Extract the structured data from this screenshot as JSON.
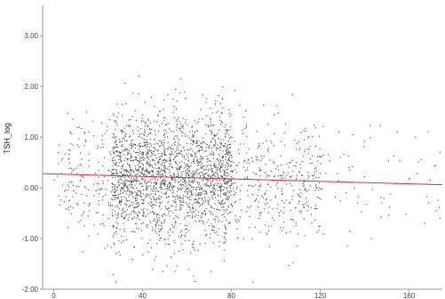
{
  "chart_data": {
    "type": "scatter",
    "title": "",
    "xlabel": "",
    "ylabel": "TSH_log",
    "xlim": [
      -5,
      175
    ],
    "ylim": [
      -2.0,
      3.6
    ],
    "x_ticks": [
      {
        "value": 0,
        "label": "0"
      },
      {
        "value": 40,
        "label": "40"
      },
      {
        "value": 80,
        "label": "80"
      },
      {
        "value": 120,
        "label": "120"
      },
      {
        "value": 160,
        "label": "160"
      }
    ],
    "y_ticks": [
      {
        "value": -2.0,
        "label": "-2.00"
      },
      {
        "value": -1.0,
        "label": "-1.00"
      },
      {
        "value": 0.0,
        "label": "0.00"
      },
      {
        "value": 1.0,
        "label": "1.00"
      },
      {
        "value": 2.0,
        "label": "2.00"
      },
      {
        "value": 3.0,
        "label": "3.00"
      }
    ],
    "grid": false,
    "fit_line": {
      "x": [
        -5,
        175
      ],
      "y": [
        0.28,
        0.06
      ],
      "color": "#cc3344"
    },
    "points_color": "#555555",
    "clusters": [
      {
        "x_from": 0,
        "x_to": 8,
        "y_mean": 0.3,
        "y_sd": 0.45,
        "count": 30
      },
      {
        "x_from": 6,
        "x_to": 26,
        "y_mean": 0.2,
        "y_sd": 0.6,
        "count": 140
      },
      {
        "x_from": 26,
        "x_to": 80,
        "y_mean": 0.22,
        "y_sd": 0.62,
        "count": 2200
      },
      {
        "x_from": 80,
        "x_to": 120,
        "y_mean": 0.15,
        "y_sd": 0.6,
        "count": 380
      },
      {
        "x_from": 120,
        "x_to": 175,
        "y_mean": 0.1,
        "y_sd": 0.55,
        "count": 70
      }
    ]
  }
}
